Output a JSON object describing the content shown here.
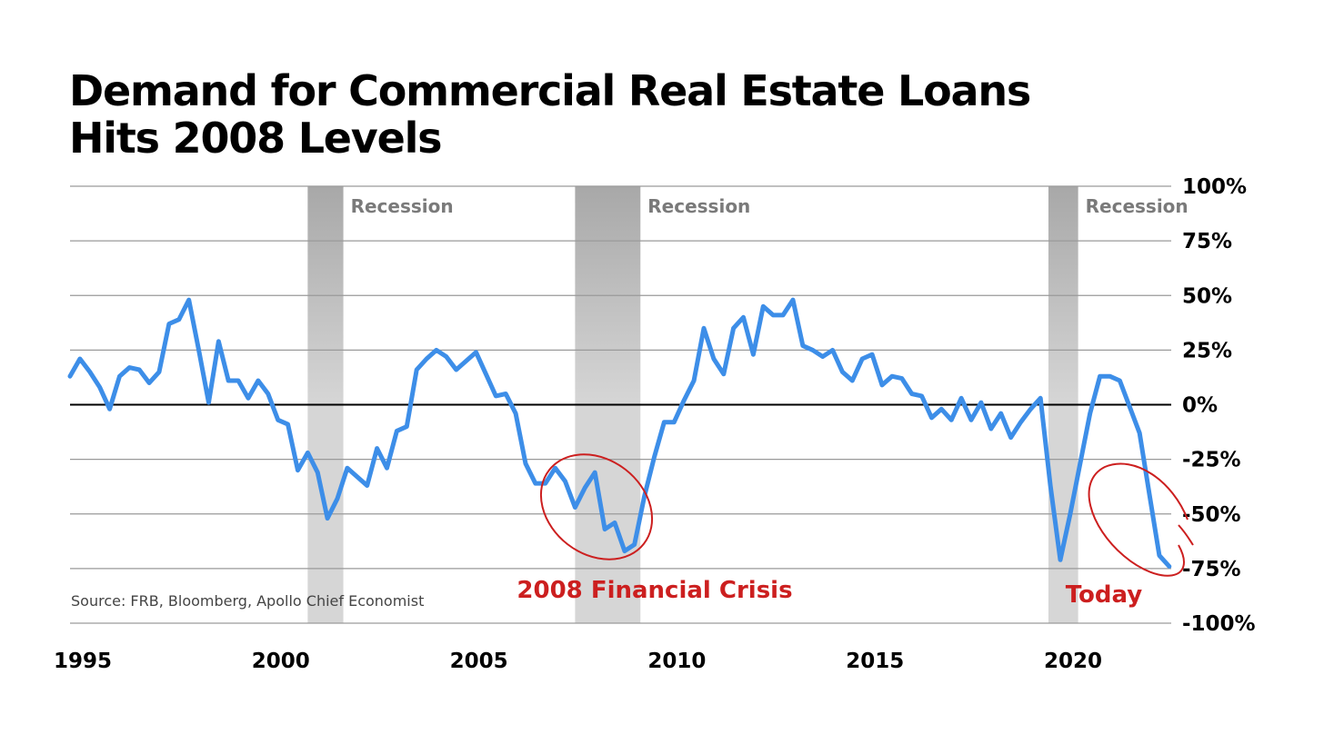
{
  "chart_data": {
    "type": "line",
    "title": [
      "Demand for Commercial Real Estate Loans",
      "Hits 2008 Levels"
    ],
    "source": "Source: FRB, Bloomberg, Apollo Chief Economist",
    "xlim": [
      1995,
      2022.8
    ],
    "ylim": [
      -100,
      100
    ],
    "x_ticks": [
      {
        "value": 1995,
        "label": "1995"
      },
      {
        "value": 2000,
        "label": "2000"
      },
      {
        "value": 2005,
        "label": "2005"
      },
      {
        "value": 2010,
        "label": "2010"
      },
      {
        "value": 2015,
        "label": "2015"
      },
      {
        "value": 2020,
        "label": "2020"
      }
    ],
    "y_ticks": [
      {
        "value": 100,
        "label": "100%"
      },
      {
        "value": 75,
        "label": "75%"
      },
      {
        "value": 50,
        "label": "50%"
      },
      {
        "value": 25,
        "label": "25%"
      },
      {
        "value": 0,
        "label": "0%"
      },
      {
        "value": -25,
        "label": "-25%"
      },
      {
        "value": -50,
        "label": "-50%"
      },
      {
        "value": -75,
        "label": "-75%"
      },
      {
        "value": -100,
        "label": "-100%"
      }
    ],
    "grid": true,
    "recessions": [
      {
        "start": 2001.0,
        "end": 2001.9,
        "label": "Recession"
      },
      {
        "start": 2007.75,
        "end": 2009.4,
        "label": "Recession"
      },
      {
        "start": 2019.7,
        "end": 2020.45,
        "label": "Recession"
      }
    ],
    "annotations": [
      {
        "text": "2008 Financial Crisis",
        "color": "#cc1f1f"
      },
      {
        "text": "Today",
        "color": "#cc1f1f"
      }
    ],
    "colors": {
      "line": "#3d8ee8",
      "zero_line": "#000000",
      "recession_top": "#a8a8a8",
      "recession_bottom": "#dcdcdc",
      "highlight": "#cc1f1f"
    },
    "series": [
      {
        "x": [
          1995.0,
          1995.25,
          1995.5,
          1995.75,
          1996.0,
          1996.25,
          1996.5,
          1996.75,
          1997.0,
          1997.25,
          1997.5,
          1997.75,
          1998.0,
          1998.25,
          1998.5,
          1998.75,
          1999.0,
          1999.25,
          1999.5,
          1999.75,
          2000.0,
          2000.25,
          2000.5,
          2000.75,
          2001.0,
          2001.25,
          2001.5,
          2001.75,
          2002.0,
          2002.25,
          2002.5,
          2002.75,
          2003.0,
          2003.25,
          2003.5,
          2003.75,
          2004.0,
          2004.25,
          2004.5,
          2004.75,
          2005.0,
          2005.25,
          2005.5,
          2005.75,
          2006.0,
          2006.25,
          2006.5,
          2006.75,
          2007.0,
          2007.25,
          2007.5,
          2007.75,
          2008.0,
          2008.25,
          2008.5,
          2008.75,
          2009.0,
          2009.25,
          2009.5,
          2009.75,
          2010.0,
          2010.25,
          2010.5,
          2010.75,
          2011.0,
          2011.25,
          2011.5,
          2011.75,
          2012.0,
          2012.25,
          2012.5,
          2012.75,
          2013.0,
          2013.25,
          2013.5,
          2013.75,
          2014.0,
          2014.25,
          2014.5,
          2014.75,
          2015.0,
          2015.25,
          2015.5,
          2015.75,
          2016.0,
          2016.25,
          2016.5,
          2016.75,
          2017.0,
          2017.25,
          2017.5,
          2017.75,
          2018.0,
          2018.25,
          2018.5,
          2018.75,
          2019.0,
          2019.25,
          2019.5,
          2019.75,
          2020.0,
          2020.25,
          2020.5,
          2020.75,
          2021.0,
          2021.25,
          2021.5,
          2021.75,
          2022.0,
          2022.25,
          2022.5,
          2022.75
        ],
        "y": [
          13,
          21,
          15,
          8,
          -2,
          13,
          17,
          16,
          10,
          15,
          37,
          39,
          48,
          25,
          1,
          29,
          11,
          11,
          3,
          11,
          5,
          -7,
          -9,
          -30,
          -22,
          -31,
          -52,
          -43,
          -29,
          -33,
          -37,
          -20,
          -29,
          -12,
          -10,
          16,
          21,
          25,
          22,
          16,
          20,
          24,
          14,
          4,
          5,
          -4,
          -27,
          -36,
          -36,
          -29,
          -35,
          -47,
          -38,
          -31,
          -57,
          -54,
          -67,
          -64,
          -42,
          -24,
          -8,
          -8,
          2,
          11,
          35,
          21,
          14,
          35,
          40,
          23,
          45,
          41,
          41,
          48,
          27,
          25,
          22,
          25,
          15,
          11,
          21,
          23,
          9,
          13,
          12,
          5,
          4,
          -6,
          -2,
          -7,
          3,
          -7,
          1,
          -11,
          -4,
          -15,
          -8,
          -2,
          3,
          -37,
          -71,
          -50,
          -27,
          -4,
          13,
          13,
          11,
          -1,
          -13,
          -41,
          -69,
          -74
        ]
      }
    ]
  }
}
